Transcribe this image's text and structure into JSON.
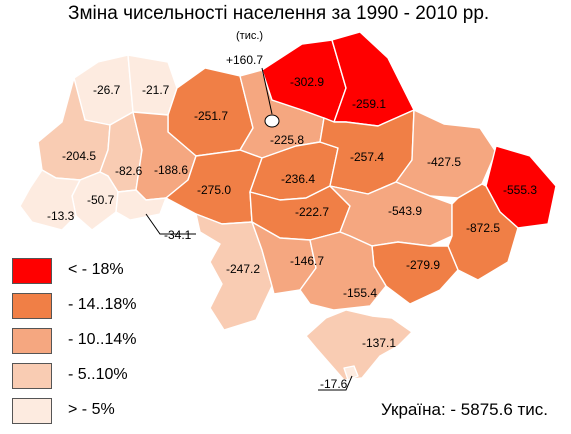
{
  "title": "Зміна чисельності населення за 1990 - 2010 рр.",
  "unit": "(тис.)",
  "total": {
    "label": "Україна:",
    "value": "- 5875.6 тис."
  },
  "colors": {
    "gt18": "#ff0000",
    "14_18": "#f07f46",
    "10_14": "#f5a780",
    "5_10": "#f9ccb3",
    "lt5": "#fdebe0"
  },
  "legend": [
    {
      "label": "< - 18%",
      "color_key": "gt18"
    },
    {
      "label": "- 14..18%",
      "color_key": "14_18"
    },
    {
      "label": "- 10..14%",
      "color_key": "10_14"
    },
    {
      "label": "- 5..10%",
      "color_key": "5_10"
    },
    {
      "label": "> - 5%",
      "color_key": "lt5"
    }
  ],
  "regions": [
    {
      "id": "volyn",
      "value": "-26.7",
      "class": "lt5"
    },
    {
      "id": "rivne",
      "value": "-21.7",
      "class": "lt5"
    },
    {
      "id": "zhytomyr",
      "value": "-251.7",
      "class": "14_18"
    },
    {
      "id": "kyiv-oblast",
      "value": "-225.8",
      "class": "10_14"
    },
    {
      "id": "kyiv-city",
      "value": "+160.7",
      "class": "lt5"
    },
    {
      "id": "chernihiv",
      "value": "-302.9",
      "class": "gt18"
    },
    {
      "id": "sumy",
      "value": "-259.1",
      "class": "gt18"
    },
    {
      "id": "lviv",
      "value": "-204.5",
      "class": "5_10"
    },
    {
      "id": "ternopil",
      "value": "-82.6",
      "class": "5_10"
    },
    {
      "id": "khmelnytskyi",
      "value": "-188.6",
      "class": "10_14"
    },
    {
      "id": "vinnytsia",
      "value": "-275.0",
      "class": "14_18"
    },
    {
      "id": "cherkasy",
      "value": "-236.4",
      "class": "14_18"
    },
    {
      "id": "poltava",
      "value": "-257.4",
      "class": "14_18"
    },
    {
      "id": "kharkiv",
      "value": "-427.5",
      "class": "10_14"
    },
    {
      "id": "luhansk",
      "value": "-555.3",
      "class": "gt18"
    },
    {
      "id": "ivano-frankivsk",
      "value": "-50.7",
      "class": "lt5"
    },
    {
      "id": "zakarpattia",
      "value": "-13.3",
      "class": "lt5"
    },
    {
      "id": "chernivtsi",
      "value": "-34.1",
      "class": "lt5"
    },
    {
      "id": "kirovohrad",
      "value": "-222.7",
      "class": "14_18"
    },
    {
      "id": "dnipropetrovsk",
      "value": "-543.9",
      "class": "10_14"
    },
    {
      "id": "donetsk",
      "value": "-872.5",
      "class": "14_18"
    },
    {
      "id": "odesa",
      "value": "-247.2",
      "class": "5_10"
    },
    {
      "id": "mykolaiv",
      "value": "-146.7",
      "class": "10_14"
    },
    {
      "id": "zaporizhzhia",
      "value": "-279.9",
      "class": "14_18"
    },
    {
      "id": "kherson",
      "value": "-155.4",
      "class": "10_14"
    },
    {
      "id": "crimea",
      "value": "-137.1",
      "class": "5_10"
    },
    {
      "id": "sevastopol",
      "value": "-17.6",
      "class": "lt5"
    }
  ]
}
